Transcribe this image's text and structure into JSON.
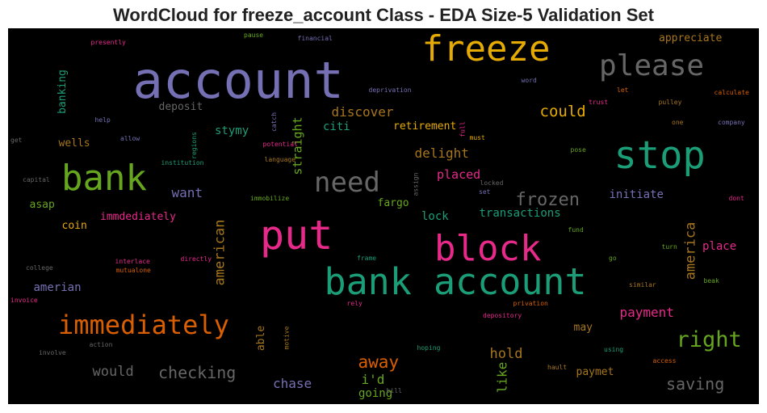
{
  "title": "WordCloud for freeze_account Class - EDA Size-5 Validation Set",
  "chart_data": {
    "type": "wordcloud",
    "background": "#000000",
    "colormap": "Dark2",
    "words": [
      {
        "text": "account",
        "weight": 62,
        "color": "#7570b3",
        "vertical": false
      },
      {
        "text": "put",
        "weight": 50,
        "color": "#e7298a",
        "vertical": false
      },
      {
        "text": "stop",
        "weight": 47,
        "color": "#1b9e77",
        "vertical": false
      },
      {
        "text": "bank account",
        "weight": 45,
        "color": "#1b9e77",
        "vertical": false
      },
      {
        "text": "freeze",
        "weight": 44,
        "color": "#e6ab02",
        "vertical": false
      },
      {
        "text": "bank",
        "weight": 44,
        "color": "#66a61e",
        "vertical": false
      },
      {
        "text": "block",
        "weight": 44,
        "color": "#e7298a",
        "vertical": false
      },
      {
        "text": "please",
        "weight": 36,
        "color": "#666666",
        "vertical": false
      },
      {
        "text": "need",
        "weight": 34,
        "color": "#666666",
        "vertical": false
      },
      {
        "text": "immediately",
        "weight": 32,
        "color": "#d95f02",
        "vertical": false
      },
      {
        "text": "right",
        "weight": 27,
        "color": "#66a61e",
        "vertical": false
      },
      {
        "text": "frozen",
        "weight": 22,
        "color": "#666666",
        "vertical": false
      },
      {
        "text": "away",
        "weight": 21,
        "color": "#d95f02",
        "vertical": false
      },
      {
        "text": "checking",
        "weight": 20,
        "color": "#666666",
        "vertical": false
      },
      {
        "text": "saving",
        "weight": 20,
        "color": "#666666",
        "vertical": false
      },
      {
        "text": "could",
        "weight": 19,
        "color": "#e6ab02",
        "vertical": false
      },
      {
        "text": "would",
        "weight": 17,
        "color": "#666666",
        "vertical": false
      },
      {
        "text": "hold",
        "weight": 17,
        "color": "#a6761d",
        "vertical": false
      },
      {
        "text": "america",
        "weight": 17,
        "color": "#a6761d",
        "vertical": true
      },
      {
        "text": "american",
        "weight": 17,
        "color": "#a6761d",
        "vertical": true
      },
      {
        "text": "payment",
        "weight": 16,
        "color": "#e7298a",
        "vertical": false
      },
      {
        "text": "discover",
        "weight": 16,
        "color": "#a6761d",
        "vertical": false
      },
      {
        "text": "delight",
        "weight": 16,
        "color": "#a6761d",
        "vertical": false
      },
      {
        "text": "want",
        "weight": 16,
        "color": "#7570b3",
        "vertical": false
      },
      {
        "text": "chase",
        "weight": 16,
        "color": "#7570b3",
        "vertical": false
      },
      {
        "text": "i'd",
        "weight": 16,
        "color": "#66a61e",
        "vertical": false
      },
      {
        "text": "like",
        "weight": 16,
        "color": "#66a61e",
        "vertical": true
      },
      {
        "text": "placed",
        "weight": 15,
        "color": "#e7298a",
        "vertical": false
      },
      {
        "text": "straight",
        "weight": 15,
        "color": "#66a61e",
        "vertical": true
      },
      {
        "text": "transactions",
        "weight": 14,
        "color": "#1b9e77",
        "vertical": false
      },
      {
        "text": "stymy",
        "weight": 14,
        "color": "#1b9e77",
        "vertical": false
      },
      {
        "text": "citi",
        "weight": 14,
        "color": "#1b9e77",
        "vertical": false
      },
      {
        "text": "lock",
        "weight": 14,
        "color": "#1b9e77",
        "vertical": false
      },
      {
        "text": "amerian",
        "weight": 14,
        "color": "#7570b3",
        "vertical": false
      },
      {
        "text": "initiate",
        "weight": 14,
        "color": "#7570b3",
        "vertical": false
      },
      {
        "text": "place",
        "weight": 14,
        "color": "#e7298a",
        "vertical": false
      },
      {
        "text": "going",
        "weight": 14,
        "color": "#66a61e",
        "vertical": false
      },
      {
        "text": "deposit",
        "weight": 13,
        "color": "#666666",
        "vertical": false
      },
      {
        "text": "retirement",
        "weight": 13,
        "color": "#e6ab02",
        "vertical": false
      },
      {
        "text": "fargo",
        "weight": 13,
        "color": "#66a61e",
        "vertical": false
      },
      {
        "text": "appreciate",
        "weight": 13,
        "color": "#a6761d",
        "vertical": false
      },
      {
        "text": "wells",
        "weight": 13,
        "color": "#a6761d",
        "vertical": false
      },
      {
        "text": "asap",
        "weight": 13,
        "color": "#66a61e",
        "vertical": false
      },
      {
        "text": "coin",
        "weight": 13,
        "color": "#e6ab02",
        "vertical": false
      },
      {
        "text": "immdediately",
        "weight": 13,
        "color": "#e7298a",
        "vertical": false
      },
      {
        "text": "may",
        "weight": 13,
        "color": "#a6761d",
        "vertical": false
      },
      {
        "text": "paymet",
        "weight": 13,
        "color": "#a6761d",
        "vertical": false
      },
      {
        "text": "able",
        "weight": 13,
        "color": "#a6761d",
        "vertical": true
      },
      {
        "text": "banking",
        "weight": 13,
        "color": "#1b9e77",
        "vertical": true
      },
      {
        "text": "interlace",
        "weight": 8,
        "color": "#e7298a",
        "vertical": false
      },
      {
        "text": "mutualone",
        "weight": 8,
        "color": "#d95f02",
        "vertical": false
      },
      {
        "text": "directly",
        "weight": 8,
        "color": "#e7298a",
        "vertical": false
      },
      {
        "text": "immobilize",
        "weight": 8,
        "color": "#66a61e",
        "vertical": false
      },
      {
        "text": "institution",
        "weight": 8,
        "color": "#1b9e77",
        "vertical": false
      },
      {
        "text": "potential",
        "weight": 8,
        "color": "#e7298a",
        "vertical": false
      },
      {
        "text": "language",
        "weight": 8,
        "color": "#a6761d",
        "vertical": false
      },
      {
        "text": "deprivation",
        "weight": 8,
        "color": "#7570b3",
        "vertical": false
      },
      {
        "text": "presently",
        "weight": 8,
        "color": "#e7298a",
        "vertical": false
      },
      {
        "text": "financial",
        "weight": 8,
        "color": "#7570b3",
        "vertical": false
      },
      {
        "text": "pause",
        "weight": 8,
        "color": "#66a61e",
        "vertical": false
      },
      {
        "text": "help",
        "weight": 8,
        "color": "#7570b3",
        "vertical": false
      },
      {
        "text": "allow",
        "weight": 8,
        "color": "#7570b3",
        "vertical": false
      },
      {
        "text": "get",
        "weight": 8,
        "color": "#666666",
        "vertical": false
      },
      {
        "text": "capital",
        "weight": 8,
        "color": "#666666",
        "vertical": false
      },
      {
        "text": "college",
        "weight": 8,
        "color": "#666666",
        "vertical": false
      },
      {
        "text": "invoice",
        "weight": 8,
        "color": "#e7298a",
        "vertical": false
      },
      {
        "text": "involve",
        "weight": 8,
        "color": "#666666",
        "vertical": false
      },
      {
        "text": "action",
        "weight": 8,
        "color": "#666666",
        "vertical": false
      },
      {
        "text": "word",
        "weight": 8,
        "color": "#7570b3",
        "vertical": false
      },
      {
        "text": "let",
        "weight": 8,
        "color": "#d95f02",
        "vertical": false
      },
      {
        "text": "trust",
        "weight": 8,
        "color": "#e7298a",
        "vertical": false
      },
      {
        "text": "pulley",
        "weight": 8,
        "color": "#a6761d",
        "vertical": false
      },
      {
        "text": "calculate",
        "weight": 8,
        "color": "#d95f02",
        "vertical": false
      },
      {
        "text": "one",
        "weight": 8,
        "color": "#a6761d",
        "vertical": false
      },
      {
        "text": "company",
        "weight": 8,
        "color": "#7570b3",
        "vertical": false
      },
      {
        "text": "rely",
        "weight": 8,
        "color": "#e7298a",
        "vertical": false
      },
      {
        "text": "must",
        "weight": 8,
        "color": "#e6ab02",
        "vertical": false
      },
      {
        "text": "pose",
        "weight": 8,
        "color": "#66a61e",
        "vertical": false
      },
      {
        "text": "locked",
        "weight": 8,
        "color": "#666666",
        "vertical": false
      },
      {
        "text": "set",
        "weight": 8,
        "color": "#7570b3",
        "vertical": false
      },
      {
        "text": "dont",
        "weight": 8,
        "color": "#e7298a",
        "vertical": false
      },
      {
        "text": "fund",
        "weight": 8,
        "color": "#66a61e",
        "vertical": false
      },
      {
        "text": "turn",
        "weight": 8,
        "color": "#66a61e",
        "vertical": false
      },
      {
        "text": "go",
        "weight": 8,
        "color": "#66a61e",
        "vertical": false
      },
      {
        "text": "frame",
        "weight": 8,
        "color": "#1b9e77",
        "vertical": false
      },
      {
        "text": "similar",
        "weight": 8,
        "color": "#a6761d",
        "vertical": false
      },
      {
        "text": "beak",
        "weight": 8,
        "color": "#66a61e",
        "vertical": false
      },
      {
        "text": "privation",
        "weight": 8,
        "color": "#d95f02",
        "vertical": false
      },
      {
        "text": "depository",
        "weight": 8,
        "color": "#e7298a",
        "vertical": false
      },
      {
        "text": "hoping",
        "weight": 8,
        "color": "#1b9e77",
        "vertical": false
      },
      {
        "text": "using",
        "weight": 8,
        "color": "#1b9e77",
        "vertical": false
      },
      {
        "text": "access",
        "weight": 8,
        "color": "#d95f02",
        "vertical": false
      },
      {
        "text": "hault",
        "weight": 8,
        "color": "#a6761d",
        "vertical": false
      },
      {
        "text": "bill",
        "weight": 8,
        "color": "#666666",
        "vertical": false
      },
      {
        "text": "regions",
        "weight": 8,
        "color": "#1b9e77",
        "vertical": true
      },
      {
        "text": "catch",
        "weight": 8,
        "color": "#7570b3",
        "vertical": true
      },
      {
        "text": "assign",
        "weight": 8,
        "color": "#666666",
        "vertical": true
      },
      {
        "text": "full",
        "weight": 8,
        "color": "#e7298a",
        "vertical": true
      },
      {
        "text": "motive",
        "weight": 8,
        "color": "#a6761d",
        "vertical": true
      }
    ]
  }
}
